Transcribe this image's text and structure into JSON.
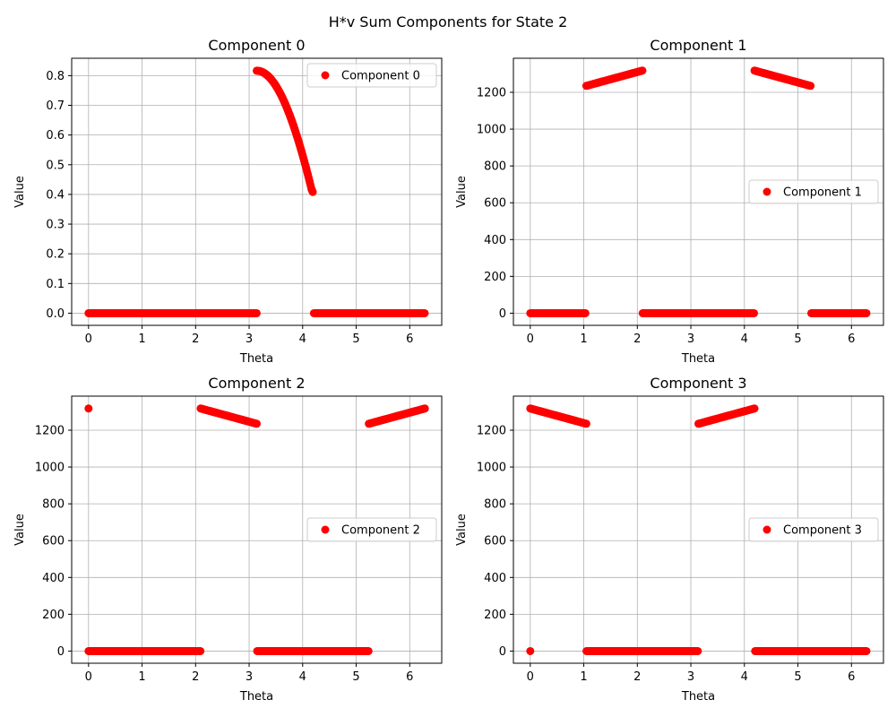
{
  "figure": {
    "title": "H*v Sum Components for State 2",
    "marker_color": "#ff0000",
    "grid_color": "#b0b0b0"
  },
  "chart_data": [
    {
      "type": "scatter",
      "title": "Component 0",
      "xlabel": "Theta",
      "ylabel": "Value",
      "xlim": [
        -0.315,
        6.598
      ],
      "ylim": [
        -0.0409,
        0.8585
      ],
      "xticks": [
        0,
        1,
        2,
        3,
        4,
        5,
        6
      ],
      "yticks": [
        0.0,
        0.1,
        0.2,
        0.3,
        0.4,
        0.5,
        0.6,
        0.7,
        0.8
      ],
      "ytick_labels": [
        "0.0",
        "0.1",
        "0.2",
        "0.3",
        "0.4",
        "0.5",
        "0.6",
        "0.7",
        "0.8"
      ],
      "grid": true,
      "legend": {
        "label": "Component 0",
        "position": "upper right"
      },
      "series": [
        {
          "name": "Component 0",
          "segments": [
            {
              "kind": "flat",
              "x_start": 0.0,
              "x_end": 3.14,
              "value": 0
            },
            {
              "kind": "curve",
              "x_start": 3.1416,
              "x_end": 4.1888,
              "values": [
                0.8165,
                0.8163,
                0.8157,
                0.8146,
                0.8131,
                0.8112,
                0.8088,
                0.806,
                0.8028,
                0.7992,
                0.7951,
                0.7906,
                0.7857,
                0.7803,
                0.7745,
                0.7683,
                0.7617,
                0.7546,
                0.7471,
                0.7392,
                0.7309,
                0.7222,
                0.7131,
                0.7035,
                0.6936,
                0.6832,
                0.6725,
                0.6614,
                0.6499,
                0.638,
                0.6257,
                0.6131,
                0.6001,
                0.5867,
                0.573,
                0.5589,
                0.5445,
                0.5298,
                0.5147,
                0.4993,
                0.4836,
                0.4675,
                0.4512,
                0.4345,
                0.4176,
                0.4082
              ]
            },
            {
              "kind": "flat",
              "x_start": 4.21,
              "x_end": 6.28,
              "value": 0
            }
          ]
        }
      ]
    },
    {
      "type": "scatter",
      "title": "Component 1",
      "xlabel": "Theta",
      "ylabel": "Value",
      "xlim": [
        -0.315,
        6.598
      ],
      "ylim": [
        -66,
        1385
      ],
      "xticks": [
        0,
        1,
        2,
        3,
        4,
        5,
        6
      ],
      "yticks": [
        0,
        200,
        400,
        600,
        800,
        1000,
        1200
      ],
      "ytick_labels": [
        "0",
        "200",
        "400",
        "600",
        "800",
        "1000",
        "1200"
      ],
      "grid": true,
      "legend": {
        "label": "Component 1",
        "position": "center right"
      },
      "series": [
        {
          "name": "Component 1",
          "segments": [
            {
              "kind": "flat",
              "x_start": 0.0,
              "x_end": 1.03,
              "value": 0
            },
            {
              "kind": "line",
              "x_start": 1.0472,
              "x_end": 2.0944,
              "y_start": 1235,
              "y_end": 1318
            },
            {
              "kind": "flat",
              "x_start": 2.1,
              "x_end": 4.18,
              "value": 0
            },
            {
              "kind": "line",
              "x_start": 4.1888,
              "x_end": 5.236,
              "y_start": 1318,
              "y_end": 1235
            },
            {
              "kind": "flat",
              "x_start": 5.25,
              "x_end": 6.28,
              "value": 0
            }
          ]
        }
      ]
    },
    {
      "type": "scatter",
      "title": "Component 2",
      "xlabel": "Theta",
      "ylabel": "Value",
      "xlim": [
        -0.315,
        6.598
      ],
      "ylim": [
        -66,
        1385
      ],
      "xticks": [
        0,
        1,
        2,
        3,
        4,
        5,
        6
      ],
      "yticks": [
        0,
        200,
        400,
        600,
        800,
        1000,
        1200
      ],
      "ytick_labels": [
        "0",
        "200",
        "400",
        "600",
        "800",
        "1000",
        "1200"
      ],
      "grid": true,
      "legend": {
        "label": "Component 2",
        "position": "center right"
      },
      "series": [
        {
          "name": "Component 2",
          "segments": [
            {
              "kind": "point",
              "x": 0.0,
              "value": 1318
            },
            {
              "kind": "flat",
              "x_start": 0.0,
              "x_end": 2.09,
              "value": 0
            },
            {
              "kind": "line",
              "x_start": 2.0944,
              "x_end": 3.1416,
              "y_start": 1318,
              "y_end": 1235
            },
            {
              "kind": "flat",
              "x_start": 3.15,
              "x_end": 5.23,
              "value": 0
            },
            {
              "kind": "line",
              "x_start": 5.236,
              "x_end": 6.2832,
              "y_start": 1235,
              "y_end": 1318
            }
          ]
        }
      ]
    },
    {
      "type": "scatter",
      "title": "Component 3",
      "xlabel": "Theta",
      "ylabel": "Value",
      "xlim": [
        -0.315,
        6.598
      ],
      "ylim": [
        -66,
        1385
      ],
      "xticks": [
        0,
        1,
        2,
        3,
        4,
        5,
        6
      ],
      "yticks": [
        0,
        200,
        400,
        600,
        800,
        1000,
        1200
      ],
      "ytick_labels": [
        "0",
        "200",
        "400",
        "600",
        "800",
        "1000",
        "1200"
      ],
      "grid": true,
      "legend": {
        "label": "Component 3",
        "position": "center right"
      },
      "series": [
        {
          "name": "Component 3",
          "segments": [
            {
              "kind": "point",
              "x": 0.0,
              "value": 0
            },
            {
              "kind": "line",
              "x_start": 0.0,
              "x_end": 1.0472,
              "y_start": 1318,
              "y_end": 1235
            },
            {
              "kind": "flat",
              "x_start": 1.05,
              "x_end": 3.13,
              "value": 0
            },
            {
              "kind": "line",
              "x_start": 3.1416,
              "x_end": 4.1888,
              "y_start": 1235,
              "y_end": 1318
            },
            {
              "kind": "flat",
              "x_start": 4.2,
              "x_end": 6.28,
              "value": 0
            }
          ]
        }
      ]
    }
  ]
}
